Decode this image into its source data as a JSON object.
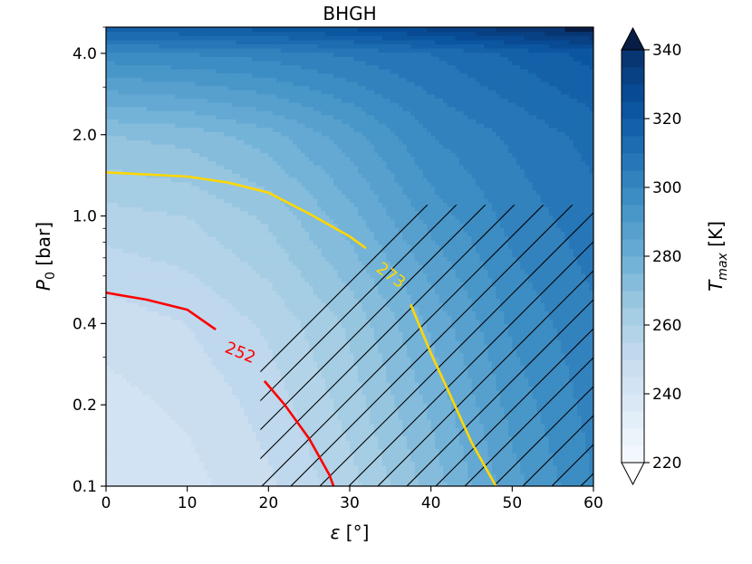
{
  "chart_data": {
    "type": "heatmap",
    "title": "BHGH",
    "xlabel": {
      "main": "ε",
      "unit": "[°]"
    },
    "ylabel": {
      "main": "P",
      "sub": "0",
      "unit": "[bar]"
    },
    "xlim": [
      0,
      60
    ],
    "ylim": [
      0.1,
      5.0
    ],
    "yscale": "log",
    "x_ticks": [
      0,
      10,
      20,
      30,
      40,
      50,
      60
    ],
    "y_ticks": [
      {
        "value": 0.1,
        "label": "0.1"
      },
      {
        "value": 0.2,
        "label": "0.2"
      },
      {
        "value": 0.4,
        "label": "0.4"
      },
      {
        "value": 1.0,
        "label": "1.0"
      },
      {
        "value": 2.0,
        "label": "2.0"
      },
      {
        "value": 4.0,
        "label": "4.0"
      }
    ],
    "colorbar": {
      "label": {
        "main": "T",
        "sub": "max",
        "unit": "[K]"
      },
      "min": 220,
      "max": 340,
      "ticks": [
        220,
        240,
        260,
        280,
        300,
        320,
        340
      ],
      "extend": "both",
      "levels": 24,
      "colormap": "Blues"
    },
    "field_grid": {
      "eps": [
        0,
        10,
        20,
        30,
        40,
        50,
        60
      ],
      "p": [
        0.1,
        0.2,
        0.4,
        1.0,
        2.0,
        4.0,
        5.0
      ],
      "t_max": [
        [
          240,
          243,
          249,
          258,
          272,
          288,
          300
        ],
        [
          243,
          246,
          252,
          262,
          276,
          292,
          302
        ],
        [
          247,
          250,
          256,
          266,
          281,
          296,
          304
        ],
        [
          258,
          260,
          266,
          278,
          292,
          302,
          308
        ],
        [
          270,
          272,
          278,
          288,
          300,
          306,
          312
        ],
        [
          298,
          300,
          302,
          306,
          310,
          316,
          322
        ],
        [
          318,
          320,
          322,
          326,
          332,
          338,
          344
        ]
      ]
    },
    "contours": [
      {
        "level": 252,
        "label": "252",
        "color": "#ff0000",
        "segments": [
          [
            [
              0,
              0.52
            ],
            [
              5,
              0.49
            ],
            [
              10,
              0.45
            ],
            [
              13.5,
              0.38
            ]
          ],
          [
            [
              19.5,
              0.245
            ],
            [
              22,
              0.2
            ],
            [
              25,
              0.15
            ],
            [
              27.5,
              0.11
            ],
            [
              28,
              0.1
            ]
          ]
        ],
        "label_at": {
          "eps": 16.5,
          "p": 0.31,
          "rotation_deg": 22
        }
      },
      {
        "level": 273,
        "label": "273",
        "color": "#ffd700",
        "segments": [
          [
            [
              0,
              1.45
            ],
            [
              10,
              1.4
            ],
            [
              15,
              1.33
            ],
            [
              20,
              1.22
            ],
            [
              25,
              1.02
            ],
            [
              30,
              0.84
            ],
            [
              32,
              0.76
            ]
          ],
          [
            [
              37.5,
              0.47
            ],
            [
              40,
              0.31
            ],
            [
              42,
              0.23
            ],
            [
              45,
              0.145
            ],
            [
              48,
              0.1
            ]
          ]
        ],
        "label_at": {
          "eps": 35,
          "p": 0.6,
          "rotation_deg": 36
        }
      }
    ],
    "hatch_region": {
      "description_free": true,
      "polygon": [
        [
          19,
          0.1
        ],
        [
          19,
          0.3
        ],
        [
          28,
          0.55
        ],
        [
          37,
          1.1
        ],
        [
          60,
          1.1
        ],
        [
          60,
          0.1
        ]
      ],
      "style": "diagonal"
    }
  }
}
